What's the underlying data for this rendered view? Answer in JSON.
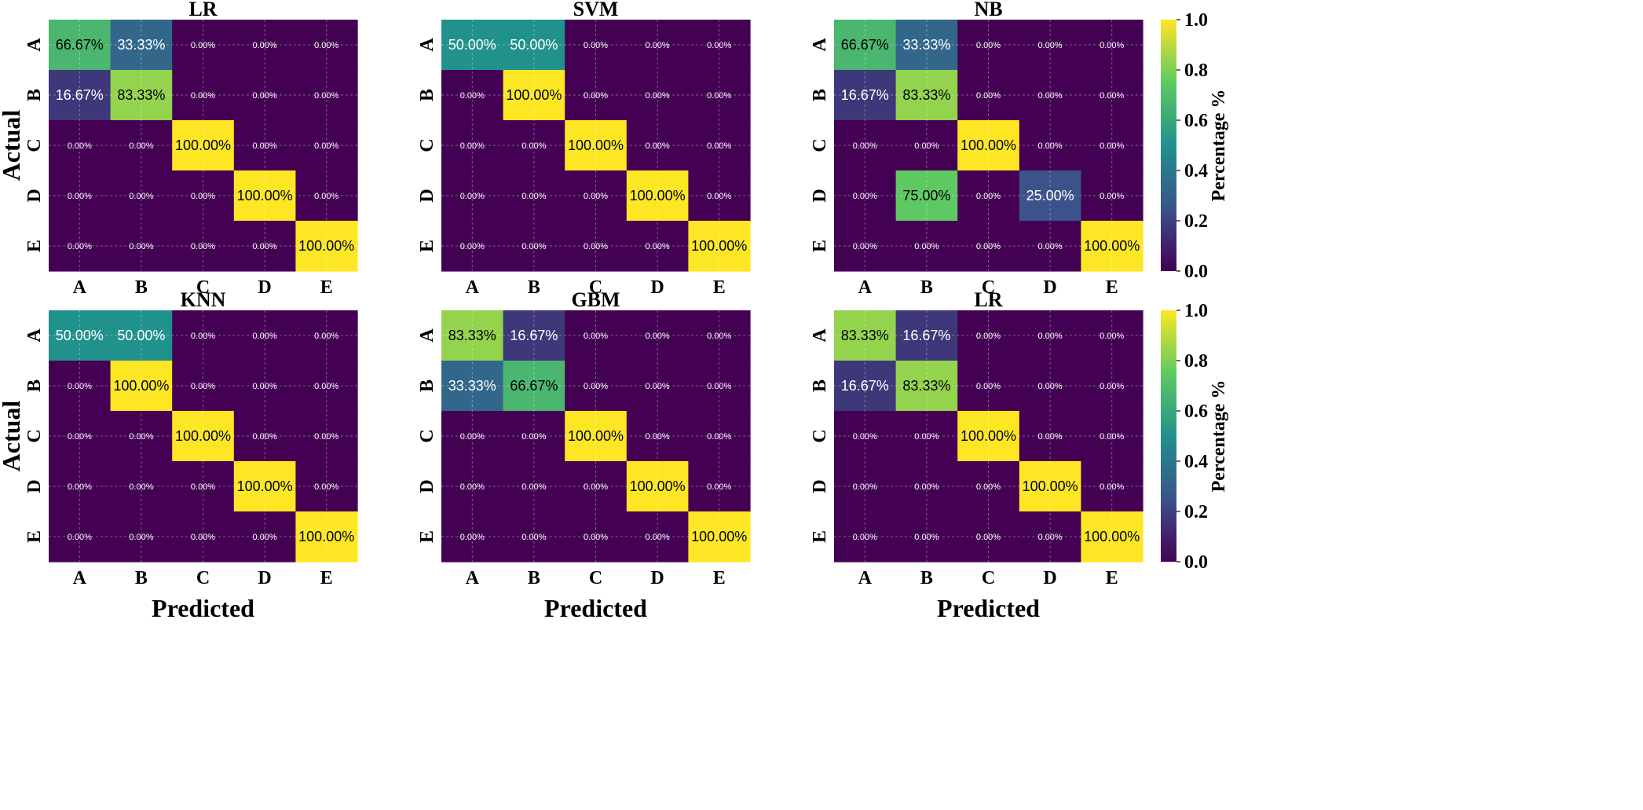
{
  "chart_data": [
    {
      "type": "heatmap",
      "title": "LR",
      "xlabel": "",
      "ylabel": "Actual",
      "x_categories": [
        "A",
        "B",
        "C",
        "D",
        "E"
      ],
      "y_categories": [
        "A",
        "B",
        "C",
        "D",
        "E"
      ],
      "values": [
        [
          0.6667,
          0.3333,
          0,
          0,
          0
        ],
        [
          0.1667,
          0.8333,
          0,
          0,
          0
        ],
        [
          0,
          0,
          1,
          0,
          0
        ],
        [
          0,
          0,
          0,
          1,
          0
        ],
        [
          0,
          0,
          0,
          0,
          1
        ]
      ],
      "labels": [
        [
          "66.67%",
          "33.33%",
          "0.00%",
          "0.00%",
          "0.00%"
        ],
        [
          "16.67%",
          "83.33%",
          "0.00%",
          "0.00%",
          "0.00%"
        ],
        [
          "0.00%",
          "0.00%",
          "100.00%",
          "0.00%",
          "0.00%"
        ],
        [
          "0.00%",
          "0.00%",
          "0.00%",
          "100.00%",
          "0.00%"
        ],
        [
          "0.00%",
          "0.00%",
          "0.00%",
          "0.00%",
          "100.00%"
        ]
      ],
      "grid": true
    },
    {
      "type": "heatmap",
      "title": "SVM",
      "xlabel": "",
      "ylabel": "",
      "x_categories": [
        "A",
        "B",
        "C",
        "D",
        "E"
      ],
      "y_categories": [
        "A",
        "B",
        "C",
        "D",
        "E"
      ],
      "values": [
        [
          0.5,
          0.5,
          0,
          0,
          0
        ],
        [
          0,
          1,
          0,
          0,
          0
        ],
        [
          0,
          0,
          1,
          0,
          0
        ],
        [
          0,
          0,
          0,
          1,
          0
        ],
        [
          0,
          0,
          0,
          0,
          1
        ]
      ],
      "labels": [
        [
          "50.00%",
          "50.00%",
          "0.00%",
          "0.00%",
          "0.00%"
        ],
        [
          "0.00%",
          "100.00%",
          "0.00%",
          "0.00%",
          "0.00%"
        ],
        [
          "0.00%",
          "0.00%",
          "100.00%",
          "0.00%",
          "0.00%"
        ],
        [
          "0.00%",
          "0.00%",
          "0.00%",
          "100.00%",
          "0.00%"
        ],
        [
          "0.00%",
          "0.00%",
          "0.00%",
          "0.00%",
          "100.00%"
        ]
      ],
      "grid": true
    },
    {
      "type": "heatmap",
      "title": "NB",
      "xlabel": "",
      "ylabel": "",
      "x_categories": [
        "A",
        "B",
        "C",
        "D",
        "E"
      ],
      "y_categories": [
        "A",
        "B",
        "C",
        "D",
        "E"
      ],
      "values": [
        [
          0.6667,
          0.3333,
          0,
          0,
          0
        ],
        [
          0.1667,
          0.8333,
          0,
          0,
          0
        ],
        [
          0,
          0,
          1,
          0,
          0
        ],
        [
          0,
          0.75,
          0,
          0.25,
          0
        ],
        [
          0,
          0,
          0,
          0,
          1
        ]
      ],
      "labels": [
        [
          "66.67%",
          "33.33%",
          "0.00%",
          "0.00%",
          "0.00%"
        ],
        [
          "16.67%",
          "83.33%",
          "0.00%",
          "0.00%",
          "0.00%"
        ],
        [
          "0.00%",
          "0.00%",
          "100.00%",
          "0.00%",
          "0.00%"
        ],
        [
          "0.00%",
          "75.00%",
          "0.00%",
          "25.00%",
          "0.00%"
        ],
        [
          "0.00%",
          "0.00%",
          "0.00%",
          "0.00%",
          "100.00%"
        ]
      ],
      "grid": true,
      "colorbar": {
        "label": "Percentage %",
        "range": [
          0,
          1
        ],
        "ticks": [
          "0.0",
          "0.2",
          "0.4",
          "0.6",
          "0.8",
          "1.0"
        ]
      }
    },
    {
      "type": "heatmap",
      "title": "KNN",
      "xlabel": "",
      "ylabel": "Actual",
      "x_categories": [
        "A",
        "B",
        "C",
        "D",
        "E"
      ],
      "y_categories": [
        "A",
        "B",
        "C",
        "D",
        "E"
      ],
      "values": [
        [
          0.5,
          0.5,
          0,
          0,
          0
        ],
        [
          0,
          1,
          0,
          0,
          0
        ],
        [
          0,
          0,
          1,
          0,
          0
        ],
        [
          0,
          0,
          0,
          1,
          0
        ],
        [
          0,
          0,
          0,
          0,
          1
        ]
      ],
      "labels": [
        [
          "50.00%",
          "50.00%",
          "0.00%",
          "0.00%",
          "0.00%"
        ],
        [
          "0.00%",
          "100.00%",
          "0.00%",
          "0.00%",
          "0.00%"
        ],
        [
          "0.00%",
          "0.00%",
          "100.00%",
          "0.00%",
          "0.00%"
        ],
        [
          "0.00%",
          "0.00%",
          "0.00%",
          "100.00%",
          "0.00%"
        ],
        [
          "0.00%",
          "0.00%",
          "0.00%",
          "0.00%",
          "100.00%"
        ]
      ],
      "grid": true
    },
    {
      "type": "heatmap",
      "title": "GBM",
      "xlabel": "Predicted",
      "ylabel": "",
      "x_categories": [
        "A",
        "B",
        "C",
        "D",
        "E"
      ],
      "y_categories": [
        "A",
        "B",
        "C",
        "D",
        "E"
      ],
      "values": [
        [
          0.8333,
          0.1667,
          0,
          0,
          0
        ],
        [
          0.3333,
          0.6667,
          0,
          0,
          0
        ],
        [
          0,
          0,
          1,
          0,
          0
        ],
        [
          0,
          0,
          0,
          1,
          0
        ],
        [
          0,
          0,
          0,
          0,
          1
        ]
      ],
      "labels": [
        [
          "83.33%",
          "16.67%",
          "0.00%",
          "0.00%",
          "0.00%"
        ],
        [
          "33.33%",
          "66.67%",
          "0.00%",
          "0.00%",
          "0.00%"
        ],
        [
          "0.00%",
          "0.00%",
          "100.00%",
          "0.00%",
          "0.00%"
        ],
        [
          "0.00%",
          "0.00%",
          "0.00%",
          "100.00%",
          "0.00%"
        ],
        [
          "0.00%",
          "0.00%",
          "0.00%",
          "0.00%",
          "100.00%"
        ]
      ],
      "grid": true
    },
    {
      "type": "heatmap",
      "title": "LR",
      "xlabel": "Predicted",
      "ylabel": "",
      "x_categories": [
        "A",
        "B",
        "C",
        "D",
        "E"
      ],
      "y_categories": [
        "A",
        "B",
        "C",
        "D",
        "E"
      ],
      "values": [
        [
          0.8333,
          0.1667,
          0,
          0,
          0
        ],
        [
          0.1667,
          0.8333,
          0,
          0,
          0
        ],
        [
          0,
          0,
          1,
          0,
          0
        ],
        [
          0,
          0,
          0,
          1,
          0
        ],
        [
          0,
          0,
          0,
          0,
          1
        ]
      ],
      "labels": [
        [
          "83.33%",
          "16.67%",
          "0.00%",
          "0.00%",
          "0.00%"
        ],
        [
          "16.67%",
          "83.33%",
          "0.00%",
          "0.00%",
          "0.00%"
        ],
        [
          "0.00%",
          "0.00%",
          "100.00%",
          "0.00%",
          "0.00%"
        ],
        [
          "0.00%",
          "0.00%",
          "0.00%",
          "100.00%",
          "0.00%"
        ],
        [
          "0.00%",
          "0.00%",
          "0.00%",
          "0.00%",
          "100.00%"
        ]
      ],
      "grid": true,
      "colorbar": {
        "label": "Percentage %",
        "range": [
          0,
          1
        ],
        "ticks": [
          "0.0",
          "0.2",
          "0.4",
          "0.6",
          "0.8",
          "1.0"
        ]
      }
    }
  ],
  "colormap": {
    "name": "viridis",
    "stops": [
      "#440154",
      "#3b528b",
      "#21918c",
      "#5ec962",
      "#fde725"
    ]
  },
  "extra_labels": {
    "xlabel_left_bottom": "Predicted"
  }
}
